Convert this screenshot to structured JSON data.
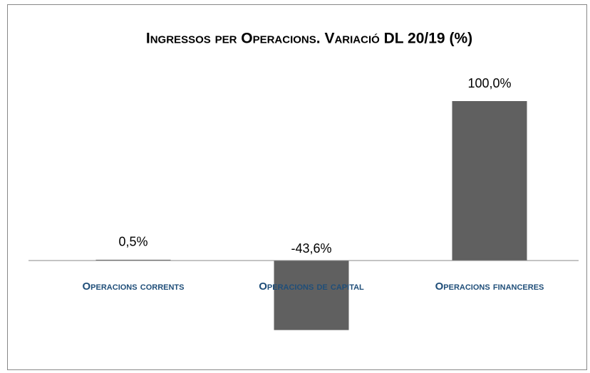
{
  "chart_data": {
    "type": "bar",
    "title": "Ingressos per Operacions. Variació DL 20/19 (%)",
    "categories": [
      "Operacions corrents",
      "Operacions de capital",
      "Operacions financeres"
    ],
    "values": [
      0.5,
      -43.6,
      100.0
    ],
    "value_labels": [
      "0,5%",
      "-43,6%",
      "100,0%"
    ],
    "color": "#606060"
  }
}
